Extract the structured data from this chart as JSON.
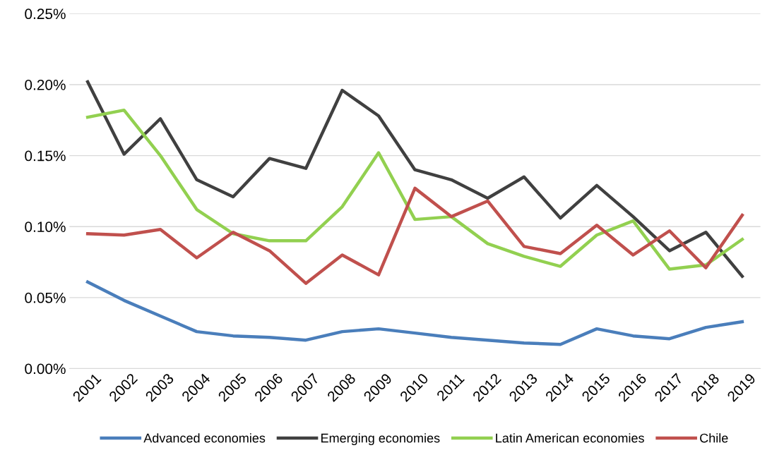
{
  "chart_data": {
    "type": "line",
    "categories": [
      "2001",
      "2002",
      "2003",
      "2004",
      "2005",
      "2006",
      "2007",
      "2008",
      "2009",
      "2010",
      "2011",
      "2012",
      "2013",
      "2014",
      "2015",
      "2016",
      "2017",
      "2018",
      "2019"
    ],
    "series": [
      {
        "name": "Advanced economies",
        "color": "#4a7ebb",
        "values": [
          0.061,
          0.048,
          0.037,
          0.026,
          0.023,
          0.022,
          0.02,
          0.026,
          0.028,
          0.025,
          0.022,
          0.02,
          0.018,
          0.017,
          0.028,
          0.023,
          0.021,
          0.029,
          0.033
        ]
      },
      {
        "name": "Emerging economies",
        "color": "#404040",
        "values": [
          0.202,
          0.151,
          0.176,
          0.133,
          0.121,
          0.148,
          0.141,
          0.196,
          0.178,
          0.14,
          0.133,
          0.12,
          0.135,
          0.106,
          0.129,
          0.107,
          0.083,
          0.096,
          0.065
        ]
      },
      {
        "name": "Latin American economies",
        "color": "#92d050",
        "values": [
          0.177,
          0.182,
          0.15,
          0.112,
          0.095,
          0.09,
          0.09,
          0.114,
          0.152,
          0.105,
          0.107,
          0.088,
          0.079,
          0.072,
          0.094,
          0.104,
          0.07,
          0.073,
          0.091
        ]
      },
      {
        "name": "Chile",
        "color": "#c0504d",
        "values": [
          0.095,
          0.094,
          0.098,
          0.078,
          0.096,
          0.083,
          0.06,
          0.08,
          0.066,
          0.127,
          0.107,
          0.118,
          0.086,
          0.081,
          0.101,
          0.08,
          0.097,
          0.071,
          0.108
        ]
      }
    ],
    "ylim": [
      0,
      0.25
    ],
    "yticks": [
      {
        "value": 0,
        "label": "0.00%"
      },
      {
        "value": 0.05,
        "label": "0.05%"
      },
      {
        "value": 0.1,
        "label": "0.10%"
      },
      {
        "value": 0.15,
        "label": "0.15%"
      },
      {
        "value": 0.2,
        "label": "0.20%"
      },
      {
        "value": 0.25,
        "label": "0.25%"
      }
    ],
    "grid": "y",
    "legend": "bottom",
    "marker": "none",
    "line_style": "solid"
  }
}
